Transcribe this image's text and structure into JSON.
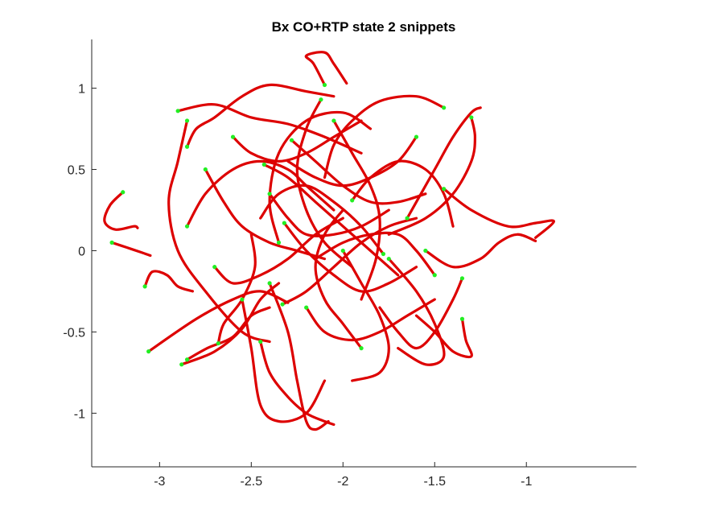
{
  "chart_data": {
    "type": "line",
    "title": "Bx  CO+RTP state 2 snippets",
    "xlabel": "",
    "ylabel": "",
    "xlim": [
      -3.37,
      -0.4
    ],
    "ylim": [
      -1.33,
      1.3
    ],
    "xticks": [
      -3,
      -2.5,
      -2,
      -1.5,
      -1
    ],
    "xtick_labels": [
      "-3",
      "-2.5",
      "-2",
      "-1.5",
      "-1"
    ],
    "yticks": [
      -1,
      -0.5,
      0,
      0.5,
      1
    ],
    "ytick_labels": [
      "-1",
      "-0.5",
      "0",
      "0.5",
      "1"
    ],
    "grid": false,
    "box": "left-bottom",
    "colors": {
      "trajectory": "#dd0000",
      "start_marker": "#22ee22"
    },
    "series": [
      {
        "points": [
          [
            -2.1,
            1.02
          ],
          [
            -2.16,
            1.15
          ],
          [
            -2.2,
            1.2
          ],
          [
            -2.1,
            1.22
          ],
          [
            -2.05,
            1.15
          ],
          [
            -1.98,
            1.03
          ]
        ]
      },
      {
        "points": [
          [
            -3.2,
            0.36
          ],
          [
            -3.27,
            0.28
          ],
          [
            -3.3,
            0.18
          ],
          [
            -3.24,
            0.13
          ],
          [
            -3.14,
            0.15
          ],
          [
            -3.12,
            0.14
          ]
        ]
      },
      {
        "points": [
          [
            -3.26,
            0.05
          ],
          [
            -3.18,
            0.02
          ],
          [
            -3.1,
            -0.01
          ],
          [
            -3.05,
            -0.03
          ]
        ]
      },
      {
        "points": [
          [
            -3.08,
            -0.22
          ],
          [
            -3.04,
            -0.13
          ],
          [
            -2.96,
            -0.15
          ],
          [
            -2.9,
            -0.22
          ],
          [
            -2.82,
            -0.25
          ]
        ]
      },
      {
        "points": [
          [
            -3.06,
            -0.62
          ],
          [
            -2.8,
            -0.42
          ],
          [
            -2.6,
            -0.3
          ],
          [
            -2.45,
            -0.25
          ],
          [
            -2.3,
            -0.32
          ]
        ]
      },
      {
        "points": [
          [
            -2.88,
            -0.7
          ],
          [
            -2.7,
            -0.62
          ],
          [
            -2.55,
            -0.48
          ],
          [
            -2.45,
            -0.3
          ],
          [
            -2.35,
            -0.2
          ]
        ]
      },
      {
        "points": [
          [
            -2.85,
            -0.67
          ],
          [
            -2.74,
            -0.6
          ],
          [
            -2.6,
            -0.53
          ],
          [
            -2.5,
            -0.4
          ],
          [
            -2.4,
            -0.35
          ]
        ]
      },
      {
        "points": [
          [
            -2.68,
            -0.57
          ],
          [
            -2.65,
            -0.45
          ],
          [
            -2.55,
            -0.3
          ],
          [
            -2.48,
            -0.1
          ],
          [
            -2.5,
            0.1
          ]
        ]
      },
      {
        "points": [
          [
            -2.85,
            0.8
          ],
          [
            -2.9,
            0.55
          ],
          [
            -2.95,
            0.3
          ],
          [
            -2.9,
            0.0
          ],
          [
            -2.75,
            -0.25
          ],
          [
            -2.55,
            -0.5
          ],
          [
            -2.4,
            -0.56
          ]
        ]
      },
      {
        "points": [
          [
            -2.9,
            0.86
          ],
          [
            -2.7,
            0.9
          ],
          [
            -2.5,
            0.82
          ],
          [
            -2.3,
            0.78
          ],
          [
            -2.1,
            0.7
          ],
          [
            -1.9,
            0.6
          ]
        ]
      },
      {
        "points": [
          [
            -2.85,
            0.64
          ],
          [
            -2.8,
            0.75
          ],
          [
            -2.7,
            0.82
          ],
          [
            -2.55,
            0.95
          ],
          [
            -2.4,
            1.02
          ],
          [
            -2.2,
            0.98
          ],
          [
            -2.05,
            0.95
          ]
        ]
      },
      {
        "points": [
          [
            -2.85,
            0.15
          ],
          [
            -2.75,
            0.35
          ],
          [
            -2.6,
            0.5
          ],
          [
            -2.45,
            0.55
          ],
          [
            -2.3,
            0.5
          ],
          [
            -2.2,
            0.4
          ],
          [
            -2.05,
            0.25
          ]
        ]
      },
      {
        "points": [
          [
            -2.45,
            -0.56
          ],
          [
            -2.4,
            -0.75
          ],
          [
            -2.3,
            -0.9
          ],
          [
            -2.2,
            -1.0
          ],
          [
            -2.1,
            -1.05
          ],
          [
            -2.05,
            -1.07
          ]
        ]
      },
      {
        "points": [
          [
            -2.4,
            -0.2
          ],
          [
            -2.3,
            -0.5
          ],
          [
            -2.25,
            -0.8
          ],
          [
            -2.2,
            -1.05
          ],
          [
            -2.15,
            -1.1
          ],
          [
            -2.08,
            -1.05
          ]
        ]
      },
      {
        "points": [
          [
            -2.55,
            -0.3
          ],
          [
            -2.5,
            -0.6
          ],
          [
            -2.45,
            -0.95
          ],
          [
            -2.35,
            -1.05
          ],
          [
            -2.2,
            -1.0
          ],
          [
            -2.1,
            -0.8
          ]
        ]
      },
      {
        "points": [
          [
            -1.35,
            -0.17
          ],
          [
            -1.4,
            -0.3
          ],
          [
            -1.5,
            -0.5
          ],
          [
            -1.6,
            -0.6
          ],
          [
            -1.7,
            -0.5
          ],
          [
            -1.8,
            -0.35
          ]
        ]
      },
      {
        "points": [
          [
            -1.35,
            -0.42
          ],
          [
            -1.33,
            -0.55
          ],
          [
            -1.3,
            -0.65
          ],
          [
            -1.4,
            -0.62
          ],
          [
            -1.5,
            -0.5
          ],
          [
            -1.6,
            -0.4
          ]
        ]
      },
      {
        "points": [
          [
            -1.3,
            0.82
          ],
          [
            -1.28,
            0.7
          ],
          [
            -1.3,
            0.55
          ],
          [
            -1.4,
            0.35
          ],
          [
            -1.55,
            0.2
          ],
          [
            -1.75,
            0.1
          ]
        ]
      },
      {
        "points": [
          [
            -1.45,
            0.88
          ],
          [
            -1.6,
            0.95
          ],
          [
            -1.8,
            0.92
          ],
          [
            -1.95,
            0.8
          ],
          [
            -2.05,
            0.65
          ],
          [
            -2.1,
            0.45
          ]
        ]
      },
      {
        "points": [
          [
            -1.45,
            0.38
          ],
          [
            -1.3,
            0.25
          ],
          [
            -1.1,
            0.15
          ],
          [
            -0.95,
            0.17
          ],
          [
            -0.85,
            0.18
          ],
          [
            -0.95,
            0.08
          ]
        ]
      },
      {
        "points": [
          [
            -1.55,
            0.0
          ],
          [
            -1.4,
            -0.1
          ],
          [
            -1.25,
            -0.05
          ],
          [
            -1.15,
            0.05
          ],
          [
            -1.05,
            0.1
          ],
          [
            -0.95,
            0.06
          ]
        ]
      },
      {
        "points": [
          [
            -1.65,
            0.2
          ],
          [
            -1.5,
            0.5
          ],
          [
            -1.4,
            0.7
          ],
          [
            -1.3,
            0.85
          ],
          [
            -1.25,
            0.88
          ]
        ]
      },
      {
        "points": [
          [
            -1.75,
            -0.05
          ],
          [
            -1.6,
            -0.25
          ],
          [
            -1.5,
            -0.45
          ],
          [
            -1.45,
            -0.65
          ],
          [
            -1.55,
            -0.7
          ],
          [
            -1.7,
            -0.6
          ]
        ]
      },
      {
        "points": [
          [
            -2.33,
            -0.33
          ],
          [
            -2.2,
            -0.25
          ],
          [
            -2.05,
            -0.1
          ],
          [
            -1.9,
            0.05
          ],
          [
            -1.75,
            0.15
          ],
          [
            -1.6,
            0.2
          ]
        ]
      },
      {
        "points": [
          [
            -2.43,
            0.53
          ],
          [
            -2.3,
            0.45
          ],
          [
            -2.15,
            0.3
          ],
          [
            -2.0,
            0.15
          ],
          [
            -1.85,
            0.0
          ],
          [
            -1.7,
            -0.15
          ]
        ]
      },
      {
        "points": [
          [
            -2.28,
            0.68
          ],
          [
            -2.15,
            0.55
          ],
          [
            -2.0,
            0.4
          ],
          [
            -1.85,
            0.3
          ],
          [
            -1.7,
            0.3
          ],
          [
            -1.55,
            0.35
          ]
        ]
      },
      {
        "points": [
          [
            -2.32,
            0.17
          ],
          [
            -2.2,
            0.0
          ],
          [
            -2.05,
            -0.15
          ],
          [
            -1.9,
            -0.25
          ],
          [
            -1.75,
            -0.2
          ],
          [
            -1.6,
            -0.1
          ]
        ]
      },
      {
        "points": [
          [
            -2.35,
            0.05
          ],
          [
            -2.4,
            0.3
          ],
          [
            -2.35,
            0.6
          ],
          [
            -2.2,
            0.8
          ],
          [
            -2.0,
            0.85
          ],
          [
            -1.85,
            0.75
          ]
        ]
      },
      {
        "points": [
          [
            -2.05,
            0.8
          ],
          [
            -1.95,
            0.6
          ],
          [
            -1.85,
            0.4
          ],
          [
            -1.8,
            0.2
          ],
          [
            -1.82,
            -0.05
          ],
          [
            -1.9,
            -0.3
          ]
        ]
      },
      {
        "points": [
          [
            -2.12,
            0.93
          ],
          [
            -2.2,
            0.75
          ],
          [
            -2.25,
            0.5
          ],
          [
            -2.2,
            0.25
          ],
          [
            -2.1,
            0.05
          ],
          [
            -1.95,
            -0.1
          ]
        ]
      },
      {
        "points": [
          [
            -2.0,
            0.0
          ],
          [
            -1.9,
            -0.2
          ],
          [
            -1.8,
            -0.4
          ],
          [
            -1.75,
            -0.6
          ],
          [
            -1.8,
            -0.75
          ],
          [
            -1.95,
            -0.8
          ]
        ]
      },
      {
        "points": [
          [
            -1.78,
            -0.02
          ],
          [
            -1.9,
            0.15
          ],
          [
            -2.05,
            0.3
          ],
          [
            -2.2,
            0.4
          ],
          [
            -2.35,
            0.35
          ],
          [
            -2.45,
            0.2
          ]
        ]
      },
      {
        "points": [
          [
            -1.95,
            0.31
          ],
          [
            -1.85,
            0.45
          ],
          [
            -1.7,
            0.55
          ],
          [
            -1.55,
            0.5
          ],
          [
            -1.45,
            0.35
          ],
          [
            -1.4,
            0.15
          ]
        ]
      },
      {
        "points": [
          [
            -2.2,
            -0.35
          ],
          [
            -2.1,
            -0.5
          ],
          [
            -1.95,
            -0.55
          ],
          [
            -1.8,
            -0.5
          ],
          [
            -1.65,
            -0.4
          ],
          [
            -1.5,
            -0.3
          ]
        ]
      },
      {
        "points": [
          [
            -2.75,
            0.5
          ],
          [
            -2.65,
            0.3
          ],
          [
            -2.55,
            0.15
          ],
          [
            -2.4,
            0.05
          ],
          [
            -2.25,
            0.0
          ],
          [
            -2.1,
            -0.05
          ]
        ]
      },
      {
        "points": [
          [
            -2.6,
            0.7
          ],
          [
            -2.5,
            0.6
          ],
          [
            -2.35,
            0.55
          ],
          [
            -2.2,
            0.6
          ],
          [
            -2.05,
            0.7
          ],
          [
            -1.9,
            0.8
          ]
        ]
      },
      {
        "points": [
          [
            -2.7,
            -0.1
          ],
          [
            -2.6,
            -0.2
          ],
          [
            -2.45,
            -0.15
          ],
          [
            -2.3,
            -0.05
          ],
          [
            -2.15,
            0.1
          ],
          [
            -2.0,
            0.2
          ]
        ]
      },
      {
        "points": [
          [
            -1.6,
            0.7
          ],
          [
            -1.7,
            0.55
          ],
          [
            -1.85,
            0.45
          ],
          [
            -2.0,
            0.4
          ],
          [
            -2.15,
            0.45
          ],
          [
            -2.3,
            0.55
          ]
        ]
      },
      {
        "points": [
          [
            -1.5,
            -0.15
          ],
          [
            -1.6,
            0.0
          ],
          [
            -1.7,
            0.1
          ],
          [
            -1.85,
            0.1
          ],
          [
            -2.0,
            0.05
          ],
          [
            -2.15,
            -0.05
          ]
        ]
      },
      {
        "points": [
          [
            -2.4,
            0.35
          ],
          [
            -2.3,
            0.2
          ],
          [
            -2.2,
            0.1
          ],
          [
            -2.05,
            0.1
          ],
          [
            -1.9,
            0.15
          ],
          [
            -1.75,
            0.25
          ]
        ]
      },
      {
        "points": [
          [
            -1.9,
            -0.6
          ],
          [
            -2.0,
            -0.45
          ],
          [
            -2.1,
            -0.3
          ],
          [
            -2.15,
            -0.1
          ],
          [
            -2.1,
            0.1
          ],
          [
            -2.0,
            0.25
          ]
        ]
      }
    ]
  }
}
